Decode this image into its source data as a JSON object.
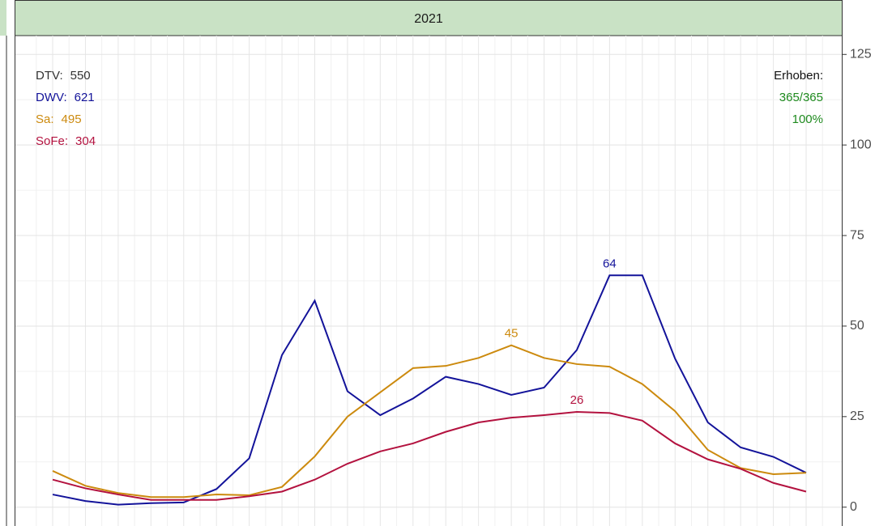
{
  "chart_data": {
    "type": "line",
    "title": "2021",
    "categories": [
      null,
      null,
      null,
      null,
      null,
      null,
      null,
      null,
      null,
      null,
      null,
      null,
      null,
      null,
      null,
      null,
      null,
      null,
      null,
      null,
      null,
      null,
      null,
      null
    ],
    "series": [
      {
        "name": "DWV",
        "color": "#13139a",
        "values": [
          3.5,
          1.7,
          0.7,
          1.1,
          1.3,
          5,
          13.5,
          42,
          57,
          32,
          25.4,
          30,
          36,
          34,
          31,
          33,
          43.4,
          64,
          64,
          41,
          23.4,
          16.5,
          13.9,
          9.5
        ],
        "value_labels": [
          null,
          null,
          null,
          null,
          null,
          null,
          null,
          null,
          null,
          null,
          null,
          null,
          null,
          null,
          null,
          null,
          null,
          "64",
          null,
          null,
          null,
          null,
          null,
          null
        ]
      },
      {
        "name": "Sa",
        "color": "#cc8a0e",
        "values": [
          10,
          5.9,
          3.9,
          2.8,
          2.8,
          3.5,
          3.3,
          5.6,
          14,
          25,
          31.7,
          38.4,
          39,
          41.2,
          44.7,
          41.2,
          39.5,
          38.8,
          34,
          26.5,
          15.8,
          10.8,
          9.1,
          9.5
        ],
        "value_labels": [
          null,
          null,
          null,
          null,
          null,
          null,
          null,
          null,
          null,
          null,
          null,
          null,
          null,
          null,
          "45",
          null,
          null,
          null,
          null,
          null,
          null,
          null,
          null,
          null
        ]
      },
      {
        "name": "SoFe",
        "color": "#b3123f",
        "values": [
          7.6,
          5.2,
          3.5,
          2,
          2,
          2,
          3,
          4.3,
          7.6,
          12,
          15.4,
          17.6,
          20.8,
          23.4,
          24.7,
          25.4,
          26.3,
          26,
          23.9,
          17.6,
          13.2,
          10.6,
          6.7,
          4.3
        ],
        "value_labels": [
          null,
          null,
          null,
          null,
          null,
          null,
          null,
          null,
          null,
          null,
          null,
          null,
          null,
          null,
          null,
          null,
          "26",
          null,
          null,
          null,
          null,
          null,
          null,
          null
        ]
      }
    ],
    "annotations_left": [
      {
        "label": "DTV:",
        "value": 550,
        "color": "#333333"
      },
      {
        "label": "DWV:",
        "value": 621,
        "color": "#13139a"
      },
      {
        "label": "Sa:",
        "value": 495,
        "color": "#cc8a0e"
      },
      {
        "label": "SoFe:",
        "value": 304,
        "color": "#b3123f"
      }
    ],
    "annotations_right": [
      {
        "text": "Erhoben:",
        "color": "#111111"
      },
      {
        "text": "365/365",
        "color": "#1e8a1e"
      },
      {
        "text": "100%",
        "color": "#1e8a1e"
      }
    ],
    "ylim": [
      -5.2,
      130.2
    ],
    "yticks": [
      0,
      25,
      50,
      75,
      100,
      125
    ],
    "grid": true
  }
}
